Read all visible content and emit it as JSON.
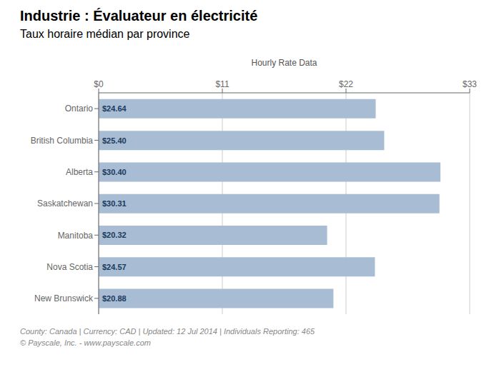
{
  "chart_data": {
    "type": "bar",
    "orientation": "horizontal",
    "title": "Industrie :  Évaluateur en électricité",
    "subtitle": "Taux horaire médian par province",
    "x_label": "Hourly Rate Data",
    "categories": [
      "Ontario",
      "British Columbia",
      "Alberta",
      "Saskatchewan",
      "Manitoba",
      "Nova Scotia",
      "New Brunswick"
    ],
    "values": [
      24.64,
      25.4,
      30.4,
      30.31,
      20.32,
      24.57,
      20.88
    ],
    "value_labels": [
      "$24.64",
      "$25.40",
      "$30.40",
      "$30.31",
      "$20.32",
      "$24.57",
      "$20.88"
    ],
    "data_labels": true,
    "color": "#a8bcd4",
    "xlim": [
      0,
      33
    ],
    "xticks": [
      {
        "value": 0,
        "label": "$0"
      },
      {
        "value": 11,
        "label": "$11"
      },
      {
        "value": 22,
        "label": "$22"
      },
      {
        "value": 33,
        "label": "$33"
      }
    ],
    "grid": true,
    "annotations": [
      "County:  Canada | Currency: CAD | Updated: 12 Jul 2014 | Individuals Reporting: 465",
      "© Payscale, Inc. - www.payscale.com"
    ]
  }
}
